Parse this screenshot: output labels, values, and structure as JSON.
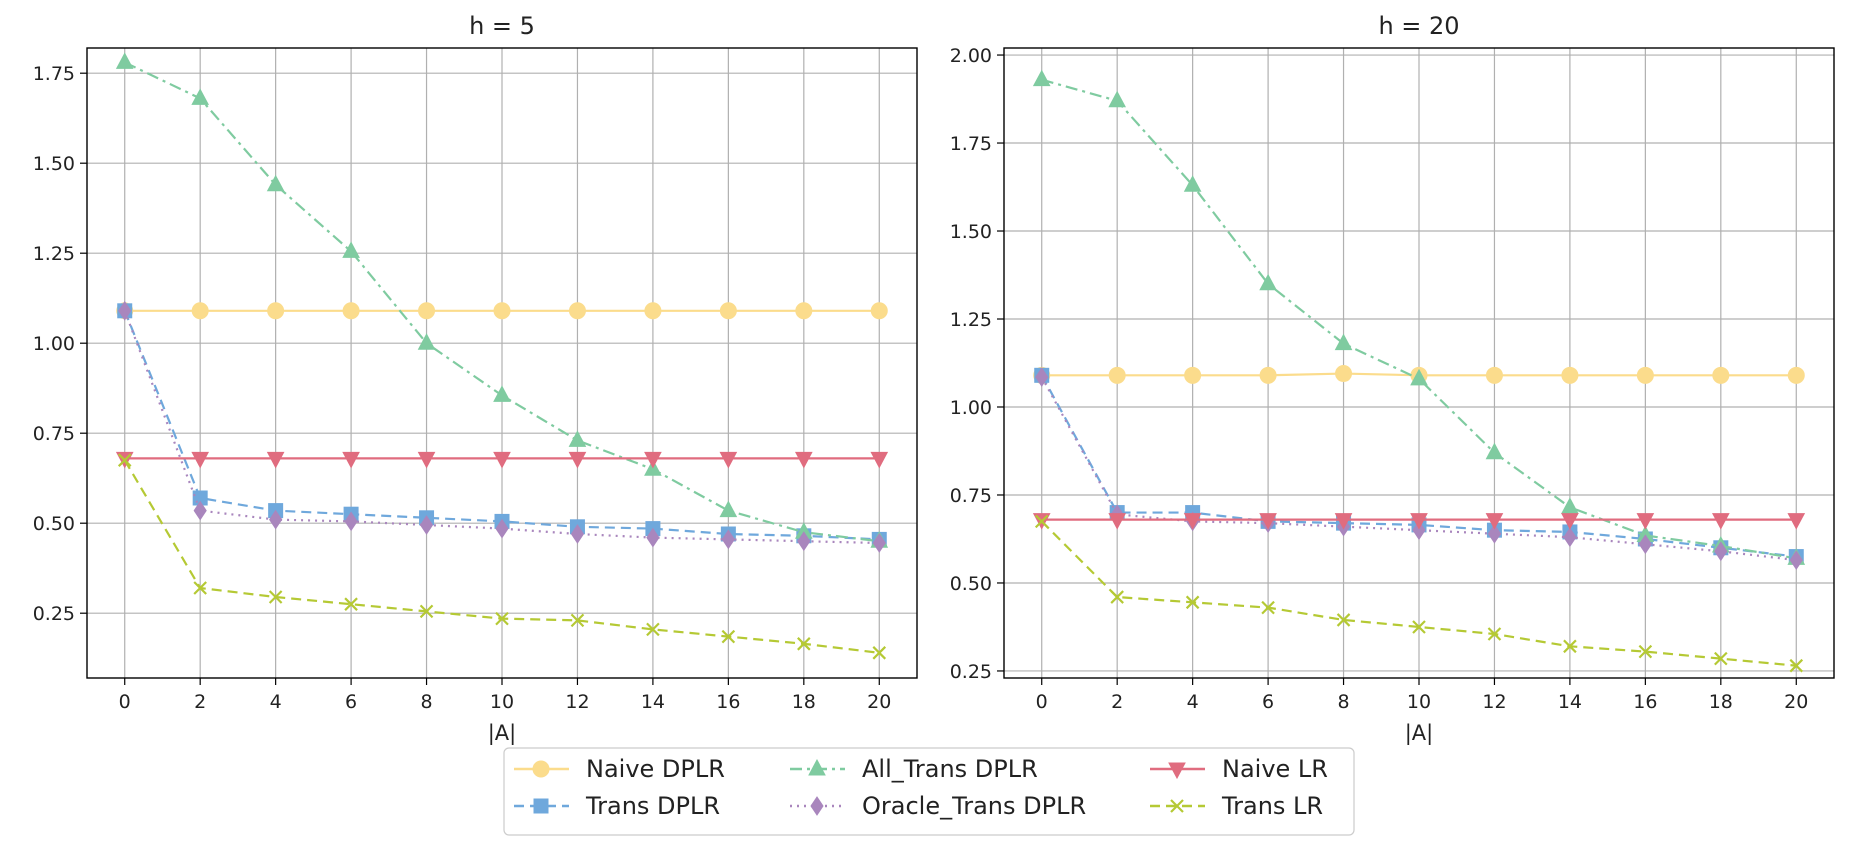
{
  "chart_data": [
    {
      "type": "line",
      "title": "h = 5",
      "xlabel": "|A|",
      "ylabel": "",
      "xlim": [
        -1,
        21
      ],
      "ylim": [
        0.07,
        1.82
      ],
      "grid": true,
      "x": [
        0,
        2,
        4,
        6,
        8,
        10,
        12,
        14,
        16,
        18,
        20
      ],
      "xticks": [
        "0",
        "2",
        "4",
        "6",
        "8",
        "10",
        "12",
        "14",
        "16",
        "18",
        "20"
      ],
      "yticks": [
        "0.25",
        "0.50",
        "0.75",
        "1.00",
        "1.25",
        "1.50",
        "1.75"
      ],
      "series": [
        {
          "name": "Naive DPLR",
          "values": [
            1.09,
            1.09,
            1.09,
            1.09,
            1.09,
            1.09,
            1.09,
            1.09,
            1.09,
            1.09,
            1.09
          ]
        },
        {
          "name": "Trans DPLR",
          "values": [
            1.09,
            0.57,
            0.535,
            0.525,
            0.515,
            0.505,
            0.49,
            0.485,
            0.47,
            0.465,
            0.455
          ]
        },
        {
          "name": "All_Trans DPLR",
          "values": [
            1.78,
            1.68,
            1.44,
            1.255,
            1.0,
            0.855,
            0.73,
            0.65,
            0.535,
            0.475,
            0.45
          ]
        },
        {
          "name": "Oracle_Trans DPLR",
          "values": [
            1.09,
            0.535,
            0.51,
            0.505,
            0.495,
            0.485,
            0.47,
            0.46,
            0.455,
            0.45,
            0.445
          ]
        },
        {
          "name": "Naive LR",
          "values": [
            0.68,
            0.68,
            0.68,
            0.68,
            0.68,
            0.68,
            0.68,
            0.68,
            0.68,
            0.68,
            0.68
          ]
        },
        {
          "name": "Trans LR",
          "values": [
            0.675,
            0.32,
            0.295,
            0.275,
            0.255,
            0.235,
            0.23,
            0.205,
            0.185,
            0.165,
            0.14
          ]
        }
      ]
    },
    {
      "type": "line",
      "title": "h = 20",
      "xlabel": "|A|",
      "ylabel": "",
      "xlim": [
        -1,
        21
      ],
      "ylim": [
        0.23,
        2.02
      ],
      "grid": true,
      "x": [
        0,
        2,
        4,
        6,
        8,
        10,
        12,
        14,
        16,
        18,
        20
      ],
      "xticks": [
        "0",
        "2",
        "4",
        "6",
        "8",
        "10",
        "12",
        "14",
        "16",
        "18",
        "20"
      ],
      "yticks": [
        "0.25",
        "0.50",
        "0.75",
        "1.00",
        "1.25",
        "1.50",
        "1.75",
        "2.00"
      ],
      "series": [
        {
          "name": "Naive DPLR",
          "values": [
            1.09,
            1.09,
            1.09,
            1.09,
            1.095,
            1.09,
            1.09,
            1.09,
            1.09,
            1.09,
            1.09
          ]
        },
        {
          "name": "Trans DPLR",
          "values": [
            1.09,
            0.7,
            0.7,
            0.675,
            0.67,
            0.665,
            0.65,
            0.645,
            0.625,
            0.6,
            0.575
          ]
        },
        {
          "name": "All_Trans DPLR",
          "values": [
            1.93,
            1.87,
            1.63,
            1.35,
            1.18,
            1.08,
            0.87,
            0.715,
            0.635,
            0.605,
            0.57
          ]
        },
        {
          "name": "Oracle_Trans DPLR",
          "values": [
            1.085,
            0.695,
            0.675,
            0.67,
            0.66,
            0.65,
            0.64,
            0.63,
            0.61,
            0.59,
            0.565
          ]
        },
        {
          "name": "Naive LR",
          "values": [
            0.68,
            0.68,
            0.68,
            0.68,
            0.68,
            0.68,
            0.68,
            0.68,
            0.68,
            0.68,
            0.68
          ]
        },
        {
          "name": "Trans LR",
          "values": [
            0.675,
            0.46,
            0.445,
            0.43,
            0.395,
            0.375,
            0.355,
            0.32,
            0.305,
            0.285,
            0.265
          ]
        }
      ]
    }
  ],
  "legend": {
    "placement": "bottom-center",
    "columns": 3,
    "entries": [
      {
        "label": "Naive DPLR",
        "color": "#fbdc8c",
        "marker": "circle",
        "dash": "solid"
      },
      {
        "label": "Trans DPLR",
        "color": "#6fa8dc",
        "marker": "square",
        "dash": "dashed"
      },
      {
        "label": "All_Trans DPLR",
        "color": "#7fcba0",
        "marker": "triangle-up",
        "dash": "dashdot"
      },
      {
        "label": "Oracle_Trans DPLR",
        "color": "#a986bd",
        "marker": "diamond",
        "dash": "dotted"
      },
      {
        "label": "Naive LR",
        "color": "#e06c7f",
        "marker": "triangle-down",
        "dash": "solid"
      },
      {
        "label": "Trans LR",
        "color": "#b5c934",
        "marker": "x",
        "dash": "dashed"
      }
    ]
  }
}
